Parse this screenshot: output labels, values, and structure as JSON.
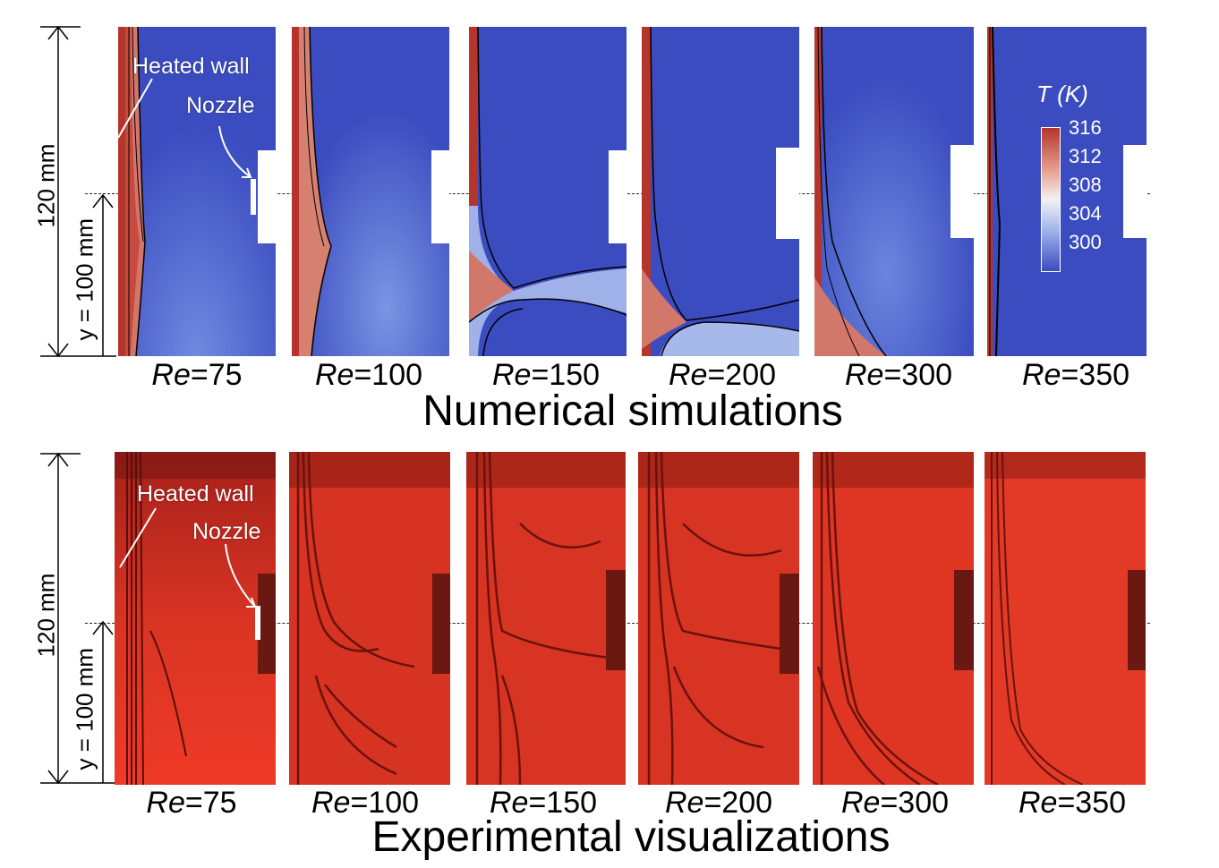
{
  "top": {
    "title": "Numerical simulations",
    "dim_total": "120 mm",
    "dim_y": "y = 100 mm",
    "heated_wall": "Heated wall",
    "nozzle": "Nozzle",
    "colorbar": {
      "title": "T (K)",
      "ticks": [
        "316",
        "312",
        "308",
        "304",
        "300"
      ],
      "colors": [
        "#c0392b",
        "#e8a091",
        "#f4f4f4",
        "#8fa8e6",
        "#3b4cc0"
      ]
    },
    "panels": [
      {
        "re_prefix": "Re",
        "re_value": "=75"
      },
      {
        "re_prefix": "Re",
        "re_value": "=100"
      },
      {
        "re_prefix": "Re",
        "re_value": "=150"
      },
      {
        "re_prefix": "Re",
        "re_value": "=200"
      },
      {
        "re_prefix": "Re",
        "re_value": "=300"
      },
      {
        "re_prefix": "Re",
        "re_value": "=350"
      }
    ]
  },
  "bottom": {
    "title": "Experimental visualizations",
    "dim_total": "120 mm",
    "dim_y": "y = 100 mm",
    "heated_wall": "Heated wall",
    "nozzle": "Nozzle",
    "panels": [
      {
        "re_prefix": "Re",
        "re_value": "=75"
      },
      {
        "re_prefix": "Re",
        "re_value": "=100"
      },
      {
        "re_prefix": "Re",
        "re_value": "=150"
      },
      {
        "re_prefix": "Re",
        "re_value": "=200"
      },
      {
        "re_prefix": "Re",
        "re_value": "=300"
      },
      {
        "re_prefix": "Re",
        "re_value": "=350"
      }
    ]
  }
}
